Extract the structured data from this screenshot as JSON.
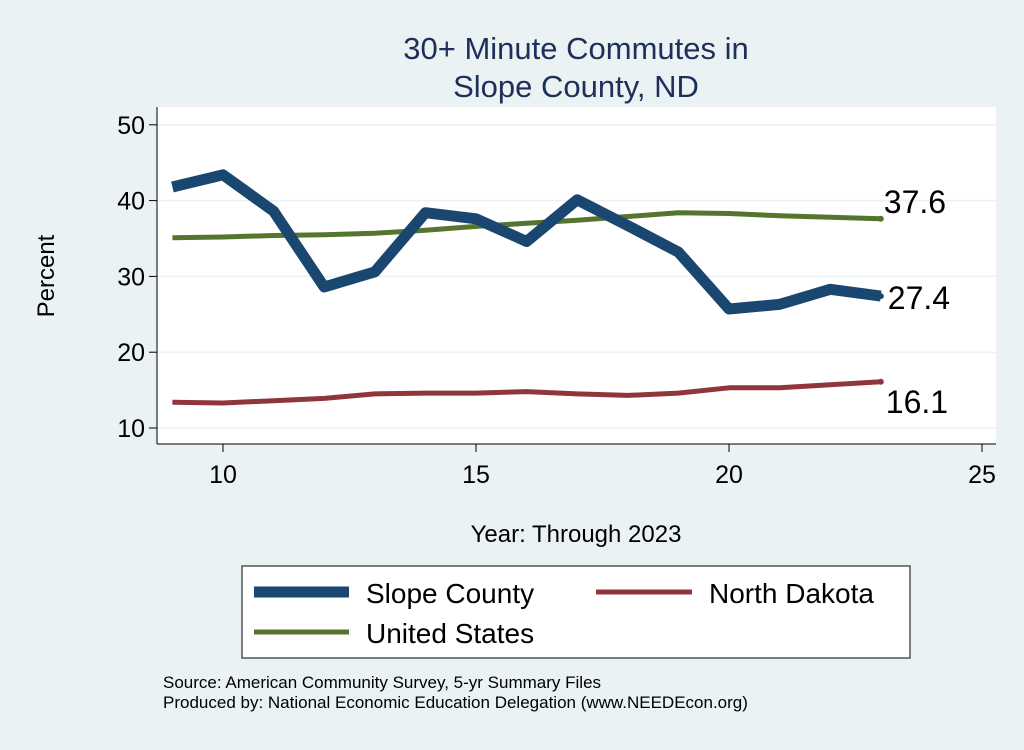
{
  "chart_data": {
    "type": "line",
    "title": [
      "30+ Minute Commutes in",
      "Slope County, ND"
    ],
    "xlabel": "Year: Through 2023",
    "ylabel": "Percent",
    "xlim": [
      9,
      25
    ],
    "ylim": [
      8,
      52
    ],
    "xticks": [
      10,
      15,
      20,
      25
    ],
    "yticks": [
      10,
      20,
      30,
      40,
      50
    ],
    "grid": "horizontal",
    "legend_position": "bottom",
    "series": [
      {
        "name": "Slope County",
        "color": "#1a476f",
        "x": [
          9,
          10,
          11,
          12,
          13,
          14,
          15,
          16,
          17,
          18,
          19,
          20,
          21,
          22,
          23
        ],
        "values": [
          41.8,
          43.4,
          38.6,
          28.6,
          30.6,
          38.4,
          37.6,
          34.6,
          40.1,
          36.7,
          33.2,
          25.7,
          26.3,
          28.3,
          27.4
        ],
        "end_label": "27.4"
      },
      {
        "name": "North Dakota",
        "color": "#90353b",
        "x": [
          9,
          10,
          11,
          12,
          13,
          14,
          15,
          16,
          17,
          18,
          19,
          20,
          21,
          22,
          23
        ],
        "values": [
          13.4,
          13.3,
          13.6,
          13.9,
          14.5,
          14.6,
          14.6,
          14.8,
          14.5,
          14.3,
          14.6,
          15.3,
          15.3,
          15.7,
          16.1
        ],
        "end_label": "16.1"
      },
      {
        "name": "United States",
        "color": "#55752f",
        "x": [
          9,
          10,
          11,
          12,
          13,
          14,
          15,
          16,
          17,
          18,
          19,
          20,
          21,
          22,
          23
        ],
        "values": [
          35.1,
          35.2,
          35.4,
          35.5,
          35.7,
          36.1,
          36.6,
          37.0,
          37.4,
          37.9,
          38.4,
          38.3,
          38.0,
          37.8,
          37.6
        ],
        "end_label": "37.6"
      }
    ],
    "notes": [
      "Source: American Community Survey, 5-yr Summary Files",
      "Produced by: National Economic Education Delegation (www.NEEDEcon.org)"
    ]
  }
}
